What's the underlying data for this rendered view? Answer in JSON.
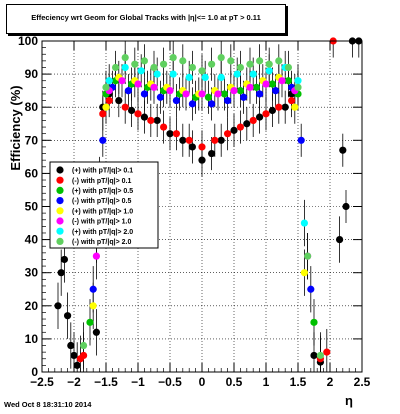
{
  "chart_data": {
    "type": "scatter",
    "title": "Effeciency wrt Geom for Global Tracks with |η|<= 1.0 at pT > 0.11",
    "xlabel": "η",
    "ylabel": "Efficiency (%)",
    "xlim": [
      -2.5,
      2.5
    ],
    "ylim": [
      0,
      100
    ],
    "x_ticks": [
      "−2.5",
      "−2",
      "−1.5",
      "−1",
      "−0.5",
      "0",
      "0.5",
      "1",
      "1.5",
      "2",
      "2.5"
    ],
    "y_ticks": [
      "0",
      "10",
      "20",
      "30",
      "40",
      "50",
      "60",
      "70",
      "80",
      "90",
      "100"
    ],
    "grid": true,
    "legend_position": "middle-left",
    "series": [
      {
        "name": "(+) with pT/|q|> 0.1",
        "color": "#000000",
        "x": [
          -2.25,
          -2.2,
          -2.15,
          -2.1,
          -2.05,
          -2.0,
          -1.95,
          -1.65,
          -1.55,
          -1.45,
          -1.3,
          -1.1,
          -0.9,
          -0.7,
          -0.5,
          -0.3,
          -0.15,
          0.0,
          0.15,
          0.3,
          0.5,
          0.7,
          0.9,
          1.1,
          1.3,
          1.4,
          1.75,
          1.85,
          2.15,
          2.2,
          2.25,
          2.35,
          2.45
        ],
        "y": [
          20,
          30,
          34,
          17,
          8,
          5,
          2,
          12,
          80,
          84,
          82,
          79,
          77,
          76,
          72,
          70,
          68,
          64,
          66,
          70,
          73,
          75,
          77,
          79,
          80,
          84,
          5,
          3,
          40,
          67,
          50,
          100,
          100
        ]
      },
      {
        "name": "(-) with pT/|q|> 0.1",
        "color": "#ff0000",
        "x": [
          -1.9,
          -1.85,
          -1.55,
          -1.45,
          -1.2,
          -1.0,
          -0.8,
          -0.6,
          -0.4,
          -0.2,
          0.0,
          0.2,
          0.4,
          0.6,
          0.8,
          1.0,
          1.2,
          1.4,
          1.85,
          1.95,
          2.05
        ],
        "y": [
          4,
          5,
          78,
          82,
          80,
          78,
          76,
          74,
          72,
          70,
          68,
          70,
          72,
          74,
          76,
          78,
          80,
          82,
          4,
          6,
          100
        ]
      },
      {
        "name": "(+) with pT/|q|> 0.5",
        "color": "#00c000",
        "x": [
          -1.75,
          -1.6,
          -1.5,
          -1.35,
          -1.1,
          -0.85,
          -0.6,
          -0.35,
          -0.1,
          0.1,
          0.35,
          0.6,
          0.85,
          1.1,
          1.35,
          1.5,
          1.75
        ],
        "y": [
          15,
          60,
          84,
          88,
          87,
          86,
          85,
          84,
          83,
          83,
          84,
          85,
          86,
          87,
          88,
          84,
          15
        ]
      },
      {
        "name": "(-) with pT/|q|> 0.5",
        "color": "#0000ff",
        "x": [
          -1.7,
          -1.55,
          -1.4,
          -1.15,
          -0.9,
          -0.65,
          -0.4,
          -0.15,
          0.15,
          0.4,
          0.65,
          0.9,
          1.15,
          1.4,
          1.55,
          1.7
        ],
        "y": [
          25,
          70,
          86,
          85,
          84,
          83,
          82,
          81,
          81,
          82,
          83,
          84,
          85,
          86,
          70,
          25
        ]
      },
      {
        "name": "(+) with pT/|q|> 1.0",
        "color": "#ffff00",
        "x": [
          -1.7,
          -1.5,
          -1.3,
          -1.05,
          -0.8,
          -0.55,
          -0.3,
          -0.05,
          0.2,
          0.45,
          0.7,
          0.95,
          1.2,
          1.45,
          1.6
        ],
        "y": [
          20,
          80,
          89,
          88,
          87,
          86,
          85,
          84,
          85,
          86,
          87,
          88,
          89,
          80,
          30
        ]
      },
      {
        "name": "(-) with pT/|q|> 1.0",
        "color": "#ff00ff",
        "x": [
          -1.65,
          -1.45,
          -1.25,
          -1.0,
          -0.75,
          -0.5,
          -0.25,
          0.0,
          0.25,
          0.5,
          0.75,
          1.0,
          1.25,
          1.45,
          1.65
        ],
        "y": [
          35,
          85,
          88,
          87,
          86,
          85,
          84,
          84,
          84,
          85,
          86,
          87,
          88,
          85,
          35
        ]
      },
      {
        "name": "(+) with pT/|q|> 2.0",
        "color": "#00ffff",
        "x": [
          -1.6,
          -1.45,
          -1.2,
          -0.95,
          -0.7,
          -0.45,
          -0.2,
          0.05,
          0.3,
          0.55,
          0.8,
          1.05,
          1.3,
          1.5,
          1.6
        ],
        "y": [
          45,
          88,
          92,
          91,
          90,
          90,
          89,
          89,
          89,
          90,
          90,
          91,
          92,
          88,
          45
        ]
      },
      {
        "name": "(-) with pT/|q|> 2.0",
        "color": "#60d060",
        "x": [
          -1.85,
          -1.65,
          -1.5,
          -1.35,
          -1.2,
          -1.05,
          -0.9,
          -0.75,
          -0.6,
          -0.45,
          -0.3,
          -0.15,
          0.0,
          0.15,
          0.3,
          0.45,
          0.6,
          0.75,
          0.9,
          1.05,
          1.2,
          1.35,
          1.5,
          1.65,
          1.85
        ],
        "y": [
          8,
          40,
          86,
          92,
          95,
          93,
          94,
          92,
          93,
          95,
          94,
          92,
          91,
          93,
          95,
          94,
          92,
          93,
          94,
          93,
          94,
          92,
          86,
          35,
          5
        ]
      }
    ]
  },
  "footer": "Wed Oct  8 18:31:10 2014"
}
